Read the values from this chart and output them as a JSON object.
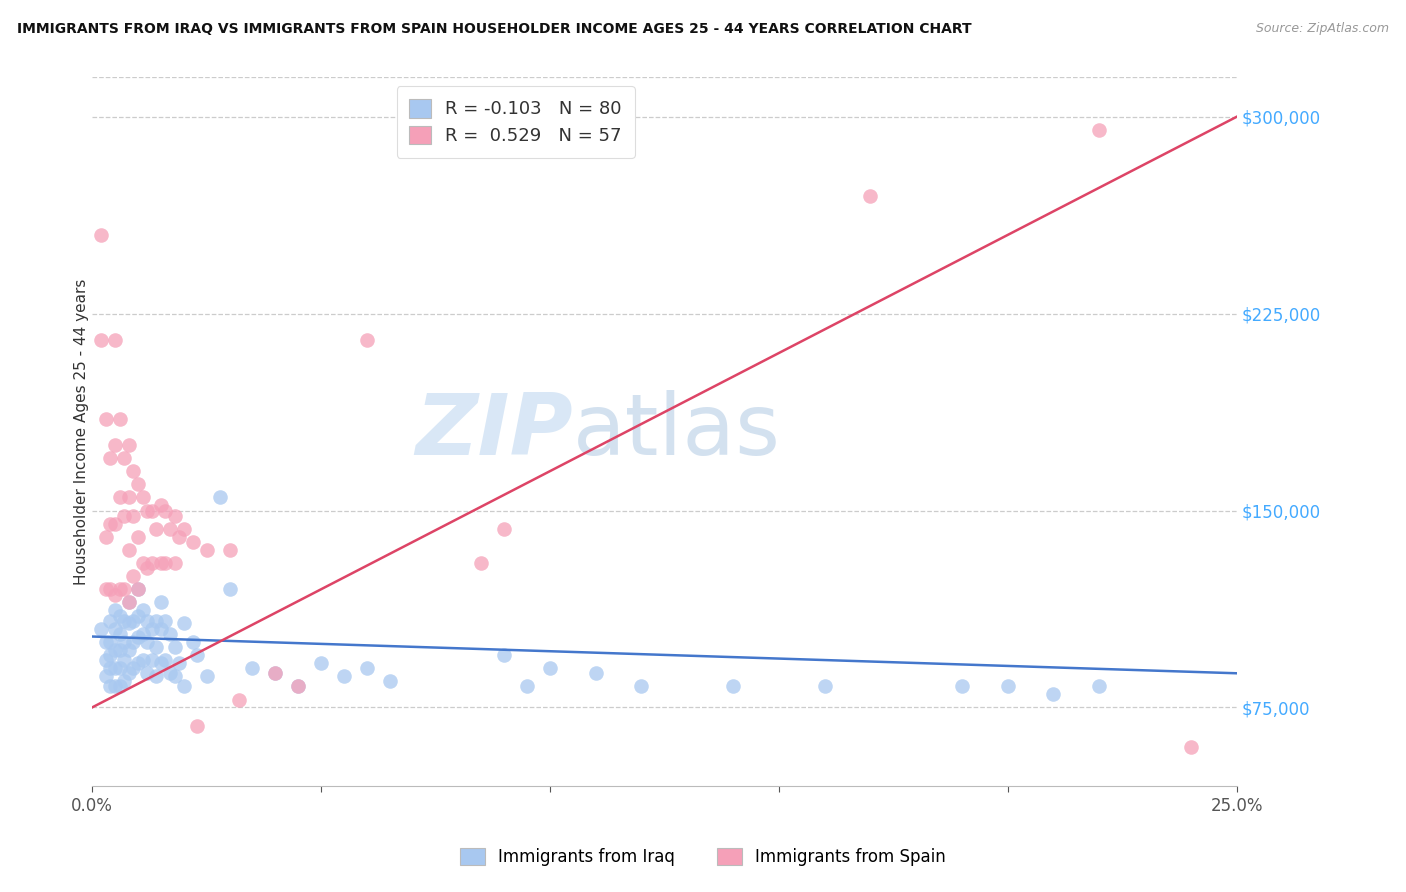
{
  "title": "IMMIGRANTS FROM IRAQ VS IMMIGRANTS FROM SPAIN HOUSEHOLDER INCOME AGES 25 - 44 YEARS CORRELATION CHART",
  "source": "Source: ZipAtlas.com",
  "ylabel": "Householder Income Ages 25 - 44 years",
  "xlim": [
    0.0,
    0.25
  ],
  "ylim": [
    45000,
    315000
  ],
  "yticks": [
    75000,
    150000,
    225000,
    300000
  ],
  "ytick_labels": [
    "$75,000",
    "$150,000",
    "$225,000",
    "$300,000"
  ],
  "xticks": [
    0.0,
    0.05,
    0.1,
    0.15,
    0.2,
    0.25
  ],
  "xtick_labels": [
    "0.0%",
    "",
    "",
    "",
    "",
    "25.0%"
  ],
  "iraq_R": -0.103,
  "iraq_N": 80,
  "spain_R": 0.529,
  "spain_N": 57,
  "iraq_color": "#a8c8f0",
  "spain_color": "#f5a0b8",
  "iraq_line_color": "#4477cc",
  "spain_line_color": "#dd4466",
  "legend_label_iraq": "Immigrants from Iraq",
  "legend_label_spain": "Immigrants from Spain",
  "watermark_zip": "ZIP",
  "watermark_atlas": "atlas",
  "background_color": "#ffffff",
  "iraq_x": [
    0.002,
    0.003,
    0.003,
    0.003,
    0.004,
    0.004,
    0.004,
    0.004,
    0.004,
    0.005,
    0.005,
    0.005,
    0.005,
    0.005,
    0.006,
    0.006,
    0.006,
    0.006,
    0.006,
    0.007,
    0.007,
    0.007,
    0.007,
    0.008,
    0.008,
    0.008,
    0.008,
    0.009,
    0.009,
    0.009,
    0.01,
    0.01,
    0.01,
    0.01,
    0.011,
    0.011,
    0.011,
    0.012,
    0.012,
    0.012,
    0.013,
    0.013,
    0.014,
    0.014,
    0.014,
    0.015,
    0.015,
    0.015,
    0.016,
    0.016,
    0.017,
    0.017,
    0.018,
    0.018,
    0.019,
    0.02,
    0.02,
    0.022,
    0.023,
    0.025,
    0.028,
    0.03,
    0.035,
    0.04,
    0.045,
    0.05,
    0.055,
    0.06,
    0.065,
    0.09,
    0.095,
    0.1,
    0.11,
    0.12,
    0.14,
    0.16,
    0.19,
    0.2,
    0.21,
    0.22
  ],
  "iraq_y": [
    105000,
    100000,
    93000,
    87000,
    108000,
    100000,
    95000,
    90000,
    83000,
    112000,
    105000,
    97000,
    90000,
    83000,
    110000,
    103000,
    97000,
    90000,
    83000,
    108000,
    100000,
    93000,
    85000,
    115000,
    107000,
    97000,
    88000,
    108000,
    100000,
    90000,
    120000,
    110000,
    102000,
    92000,
    112000,
    103000,
    93000,
    108000,
    100000,
    88000,
    105000,
    93000,
    108000,
    98000,
    87000,
    115000,
    105000,
    92000,
    108000,
    93000,
    103000,
    88000,
    98000,
    87000,
    92000,
    107000,
    83000,
    100000,
    95000,
    87000,
    155000,
    120000,
    90000,
    88000,
    83000,
    92000,
    87000,
    90000,
    85000,
    95000,
    83000,
    90000,
    88000,
    83000,
    83000,
    83000,
    83000,
    83000,
    80000,
    83000
  ],
  "spain_x": [
    0.002,
    0.002,
    0.003,
    0.003,
    0.003,
    0.004,
    0.004,
    0.004,
    0.005,
    0.005,
    0.005,
    0.005,
    0.006,
    0.006,
    0.006,
    0.007,
    0.007,
    0.007,
    0.008,
    0.008,
    0.008,
    0.008,
    0.009,
    0.009,
    0.009,
    0.01,
    0.01,
    0.01,
    0.011,
    0.011,
    0.012,
    0.012,
    0.013,
    0.013,
    0.014,
    0.015,
    0.015,
    0.016,
    0.016,
    0.017,
    0.018,
    0.018,
    0.019,
    0.02,
    0.022,
    0.023,
    0.025,
    0.03,
    0.032,
    0.04,
    0.045,
    0.06,
    0.085,
    0.09,
    0.17,
    0.22,
    0.24
  ],
  "spain_y": [
    255000,
    215000,
    185000,
    140000,
    120000,
    170000,
    145000,
    120000,
    215000,
    175000,
    145000,
    118000,
    185000,
    155000,
    120000,
    170000,
    148000,
    120000,
    175000,
    155000,
    135000,
    115000,
    165000,
    148000,
    125000,
    160000,
    140000,
    120000,
    155000,
    130000,
    150000,
    128000,
    150000,
    130000,
    143000,
    152000,
    130000,
    150000,
    130000,
    143000,
    148000,
    130000,
    140000,
    143000,
    138000,
    68000,
    135000,
    135000,
    78000,
    88000,
    83000,
    215000,
    130000,
    143000,
    270000,
    295000,
    60000
  ],
  "iraq_trend_x": [
    0.0,
    0.25
  ],
  "iraq_trend_y": [
    102000,
    88000
  ],
  "spain_trend_x": [
    0.0,
    0.25
  ],
  "spain_trend_y": [
    75000,
    300000
  ]
}
